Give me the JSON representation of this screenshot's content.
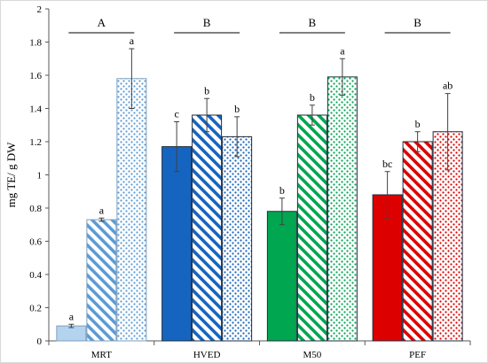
{
  "chart_data": {
    "type": "bar",
    "title": "",
    "xlabel": "",
    "ylabel": "mg TE/ g DW",
    "ylim": [
      0,
      2
    ],
    "yticks": [
      "0",
      "0.2",
      "0.4",
      "0.6",
      "0.8",
      "1",
      "1.2",
      "1.4",
      "1.6",
      "1.8",
      "2"
    ],
    "grid": false,
    "legend": "none",
    "categories": [
      "MRT",
      "HVED",
      "M50",
      "PEF"
    ],
    "group_significance": [
      "A",
      "B",
      "B",
      "B"
    ],
    "fill_patterns": [
      "solid",
      "diagonal-stripes",
      "dots"
    ],
    "groups": [
      {
        "category": "MRT",
        "color": "#5b9bd5",
        "base_fill": "#b4d3ee",
        "bars": [
          {
            "value": 0.09,
            "error": 0.01,
            "label": "a"
          },
          {
            "value": 0.73,
            "error": 0.01,
            "label": "a"
          },
          {
            "value": 1.58,
            "error": 0.18,
            "label": "a"
          }
        ]
      },
      {
        "category": "HVED",
        "color": "#1565c0",
        "base_fill": "#1565c0",
        "bars": [
          {
            "value": 1.17,
            "error": 0.15,
            "label": "c"
          },
          {
            "value": 1.36,
            "error": 0.1,
            "label": "b"
          },
          {
            "value": 1.23,
            "error": 0.12,
            "label": "b"
          }
        ]
      },
      {
        "category": "M50",
        "color": "#00a650",
        "base_fill": "#00a650",
        "bars": [
          {
            "value": 0.78,
            "error": 0.08,
            "label": "b"
          },
          {
            "value": 1.36,
            "error": 0.06,
            "label": "b"
          },
          {
            "value": 1.59,
            "error": 0.11,
            "label": "a"
          }
        ]
      },
      {
        "category": "PEF",
        "color": "#dd0000",
        "base_fill": "#dd0000",
        "bars": [
          {
            "value": 0.88,
            "error": 0.14,
            "label": "bc"
          },
          {
            "value": 1.2,
            "error": 0.06,
            "label": "b"
          },
          {
            "value": 1.26,
            "error": 0.23,
            "label": "ab"
          }
        ]
      }
    ]
  }
}
